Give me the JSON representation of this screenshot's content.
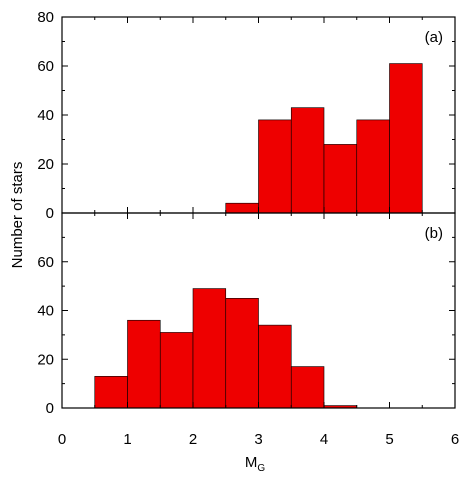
{
  "chart_data": [
    {
      "panel": "top",
      "type": "bar",
      "label": "(a)",
      "bin_edges": [
        0.5,
        1.0,
        1.5,
        2.0,
        2.5,
        3.0,
        3.5,
        4.0,
        4.5,
        5.0,
        5.5
      ],
      "values": [
        0,
        0,
        0,
        0,
        4,
        38,
        43,
        28,
        38,
        61
      ],
      "xlim": [
        0,
        6
      ],
      "ylim": [
        0,
        80
      ],
      "yticks": [
        0,
        20,
        40,
        60,
        80
      ],
      "color": "#ee0000"
    },
    {
      "panel": "bottom",
      "type": "bar",
      "label": "(b)",
      "bin_edges": [
        0.5,
        1.0,
        1.5,
        2.0,
        2.5,
        3.0,
        3.5,
        4.0,
        4.5,
        5.0,
        5.5
      ],
      "values": [
        13,
        36,
        31,
        49,
        45,
        34,
        17,
        1,
        0,
        0
      ],
      "xlim": [
        0,
        6
      ],
      "ylim": [
        0,
        80
      ],
      "yticks": [
        0,
        20,
        40,
        60
      ],
      "xticks": [
        0,
        1,
        2,
        3,
        4,
        5,
        6
      ],
      "color": "#ee0000"
    }
  ],
  "axes": {
    "ylabel": "Number of stars",
    "xlabel_main": "M",
    "xlabel_sub": "G"
  }
}
